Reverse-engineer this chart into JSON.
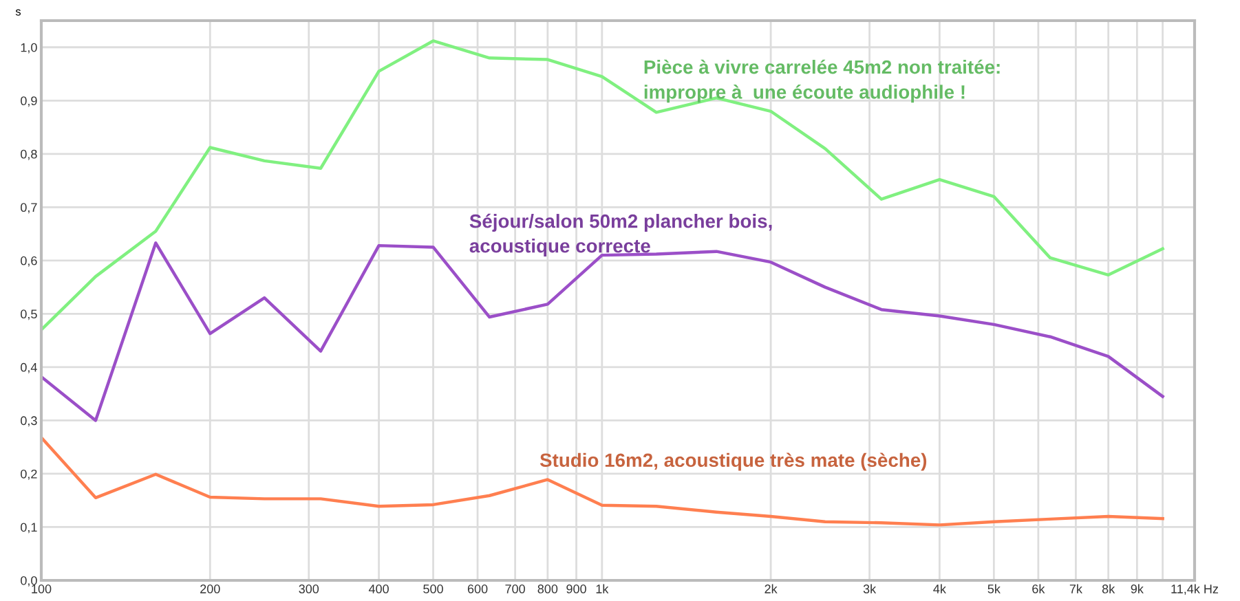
{
  "chart_data": {
    "type": "line",
    "ylabel": "s",
    "log": "x",
    "grid": true,
    "marker": "none",
    "line_style": "solid",
    "x": [
      100,
      125,
      160,
      200,
      250,
      315,
      400,
      500,
      630,
      800,
      1000,
      1250,
      1600,
      2000,
      2500,
      3150,
      4000,
      5000,
      6300,
      8000,
      10000
    ],
    "xlim": [
      100,
      11400
    ],
    "xticks": [
      100,
      200,
      300,
      400,
      500,
      600,
      700,
      800,
      900,
      {
        "value": 1000,
        "label": "1k"
      },
      {
        "value": 2000,
        "label": "2k"
      },
      {
        "value": 3000,
        "label": "3k"
      },
      {
        "value": 4000,
        "label": "4k"
      },
      {
        "value": 5000,
        "label": "5k"
      },
      {
        "value": 6000,
        "label": "6k"
      },
      {
        "value": 7000,
        "label": "7k"
      },
      {
        "value": 8000,
        "label": "8k"
      },
      {
        "value": 9000,
        "label": "9k"
      },
      {
        "value": 10000,
        "label": null
      },
      {
        "value": 11400,
        "label": "11,4k Hz"
      }
    ],
    "ylim": [
      0,
      1.05
    ],
    "yticks": [
      {
        "value": 0,
        "label": "0,0"
      },
      {
        "value": 0.1,
        "label": "0,1"
      },
      {
        "value": 0.2,
        "label": "0,2"
      },
      {
        "value": 0.3,
        "label": "0,3"
      },
      {
        "value": 0.4,
        "label": "0,4"
      },
      {
        "value": 0.5,
        "label": "0,5"
      },
      {
        "value": 0.6,
        "label": "0,6"
      },
      {
        "value": 0.7,
        "label": "0,7"
      },
      {
        "value": 0.8,
        "label": "0,8"
      },
      {
        "value": 0.9,
        "label": "0,9"
      },
      {
        "value": 1.0,
        "label": "1,0"
      }
    ],
    "series": [
      {
        "name": "Pièce à vivre carrelée 45m2 non traitée:\nimpropre à  une écoute audiophile !",
        "color": "#80f080",
        "values": [
          0.47,
          0.57,
          0.655,
          0.812,
          0.787,
          0.773,
          0.955,
          1.012,
          0.98,
          0.977,
          0.945,
          0.878,
          0.905,
          0.88,
          0.81,
          0.715,
          0.752,
          0.72,
          0.605,
          0.573,
          0.622
        ]
      },
      {
        "name": "Séjour/salon 50m2 plancher bois,\nacoustique correcte",
        "color": "#9b4fc8",
        "values": [
          0.382,
          0.3,
          0.633,
          0.463,
          0.53,
          0.43,
          0.628,
          0.625,
          0.494,
          0.518,
          0.61,
          0.612,
          0.617,
          0.597,
          0.55,
          0.508,
          0.496,
          0.48,
          0.457,
          0.42,
          0.345
        ]
      },
      {
        "name": "Studio 16m2, acoustique très mate (sèche)",
        "color": "#ff7f50",
        "values": [
          0.268,
          0.155,
          0.199,
          0.156,
          0.153,
          0.153,
          0.139,
          0.142,
          0.159,
          0.189,
          0.141,
          0.139,
          0.128,
          0.12,
          0.11,
          0.108,
          0.104,
          0.11,
          0.115,
          0.12,
          0.116
        ]
      }
    ]
  }
}
